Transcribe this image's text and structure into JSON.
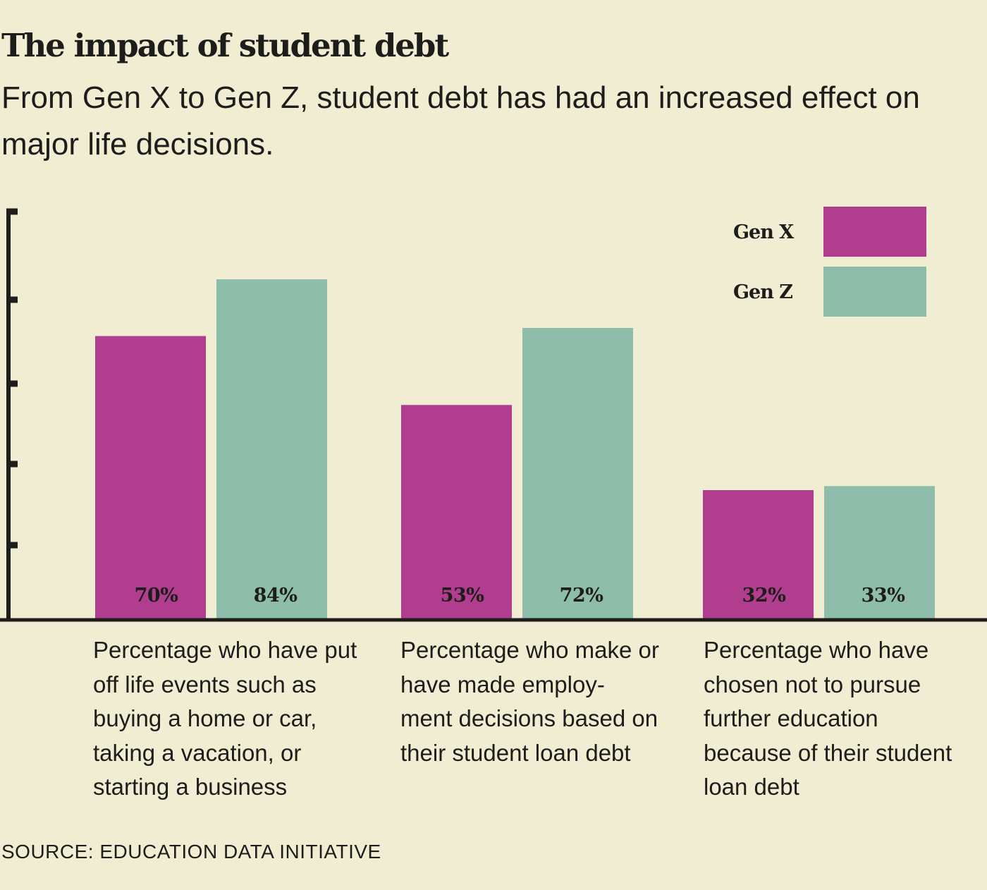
{
  "chart_data": {
    "type": "bar",
    "title": "The impact of student debt",
    "subtitle": "From Gen X to Gen Z, student debt has had an increased effect on major life decisions.",
    "categories": [
      "Percentage who have put off life events such as buying a home or car, taking a vacation, or starting a business",
      "Percentage who make or have made employ- ment decisions based on their student loan debt",
      "Percentage who have chosen not to pursue further education because of their student loan debt"
    ],
    "series": [
      {
        "name": "Gen X",
        "color": "#b13d8f",
        "values": [
          70,
          53,
          32
        ],
        "labels": [
          "70%",
          "53%",
          "32%"
        ]
      },
      {
        "name": "Gen Z",
        "color": "#8fbdab",
        "values": [
          84,
          72,
          33
        ],
        "labels": [
          "84%",
          "72%",
          "33%"
        ]
      }
    ],
    "xlabel": "",
    "ylabel": "",
    "ylim": [
      0,
      100
    ],
    "y_ticks": [
      20,
      40,
      60,
      80,
      100
    ],
    "y_tick_labels_shown": false,
    "grid": false,
    "legend_position": "top-right",
    "source": "SOURCE: EDUCATION DATA INITIATIVE"
  }
}
